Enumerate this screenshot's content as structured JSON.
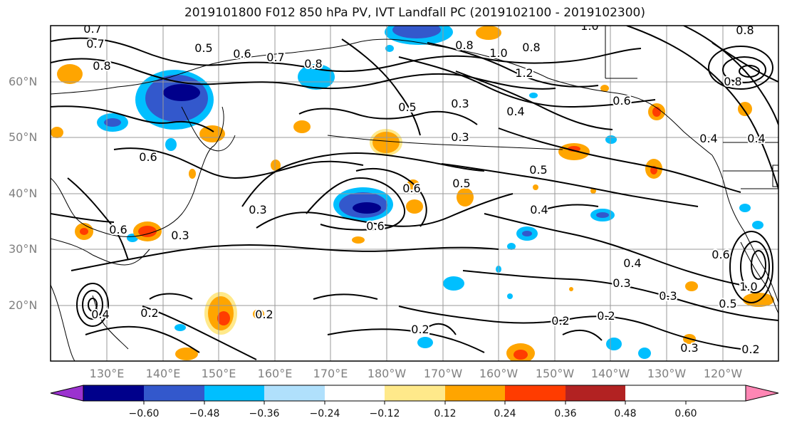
{
  "title": "2019101800 F012 850 hPa PV, IVT Landfall PC (2019102100 - 2019102300)",
  "lat_labels": [
    "60°N",
    "50°N",
    "40°N",
    "30°N",
    "20°N"
  ],
  "lon_labels": [
    "130°E",
    "140°E",
    "150°E",
    "160°E",
    "170°E",
    "180°W",
    "170°W",
    "160°W",
    "150°W",
    "140°W",
    "130°W",
    "120°W"
  ],
  "colorbar": {
    "ticks": [
      "−0.60",
      "−0.48",
      "−0.36",
      "−0.24",
      "−0.12",
      "0.12",
      "0.24",
      "0.36",
      "0.48",
      "0.60"
    ],
    "colors": [
      "#9b32cf",
      "#00008b",
      "#3358cc",
      "#00bfff",
      "#b0e0fc",
      "#ffffff",
      "#ffe98a",
      "#ffa500",
      "#ff3c00",
      "#b22222",
      "#ff86b4"
    ]
  },
  "contour_labels": [
    "0.7",
    "0.7",
    "0.5",
    "0.6",
    "0.7",
    "0.8",
    "0.8",
    "0.8",
    "1.0",
    "0.8",
    "0.8",
    "1.2",
    "0.5",
    "0.3",
    "0.4",
    "0.6",
    "0.4",
    "0.4",
    "0.3",
    "0.5",
    "0.6",
    "0.6",
    "0.5",
    "0.4",
    "0.6",
    "0.3",
    "0.3",
    "0.6",
    "0.2",
    "0.4",
    "0.2",
    "0.2",
    "0.2",
    "0.4",
    "0.3",
    "0.3",
    "0.6",
    "1.0",
    "0.5",
    "0.3",
    "0.2",
    "0.2",
    "0.8",
    "1.0"
  ]
}
